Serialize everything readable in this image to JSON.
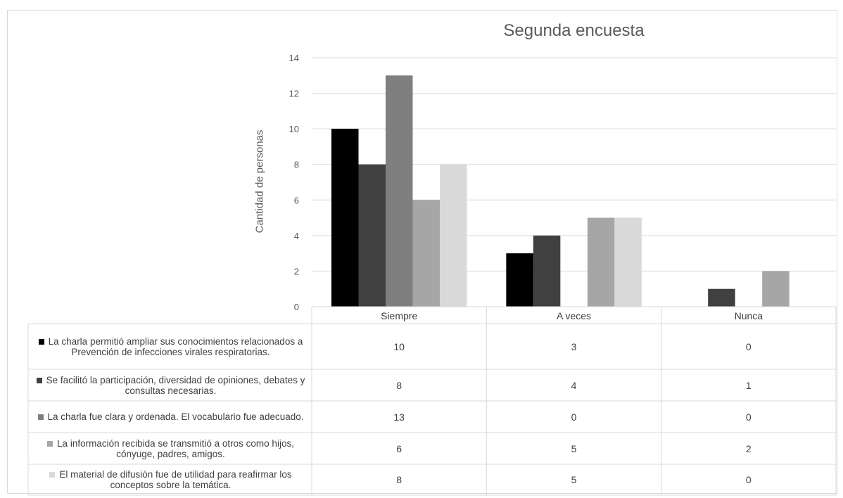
{
  "chart_data": {
    "type": "bar",
    "title": "Segunda encuesta",
    "ylabel": "Cantidad de personas",
    "xlabel": "",
    "ylim": [
      0,
      14
    ],
    "yticks": [
      0,
      2,
      4,
      6,
      8,
      10,
      12,
      14
    ],
    "grid": true,
    "legend": "data-table-below",
    "categories": [
      "Siempre",
      "A veces",
      "Nunca"
    ],
    "series": [
      {
        "name": "La charla permitió ampliar sus conocimientos relacionados a Prevención de infecciones virales respiratorias.",
        "values": [
          10,
          3,
          0
        ],
        "color": "#000000"
      },
      {
        "name": "Se facilitó la participación, diversidad de opiniones, debates y consultas necesarias.",
        "values": [
          8,
          4,
          1
        ],
        "color": "#404040"
      },
      {
        "name": "La charla fue clara y ordenada. El vocabulario fue adecuado.",
        "values": [
          13,
          0,
          0
        ],
        "color": "#7f7f7f"
      },
      {
        "name": "La información recibida se transmitió a otros como hijos, cónyuge, padres, amigos.",
        "values": [
          6,
          5,
          2
        ],
        "color": "#a6a6a6"
      },
      {
        "name": "El material de difusión fue de utilidad para reafirmar los conceptos sobre la temática.",
        "values": [
          8,
          5,
          0
        ],
        "color": "#d9d9d9"
      }
    ]
  }
}
